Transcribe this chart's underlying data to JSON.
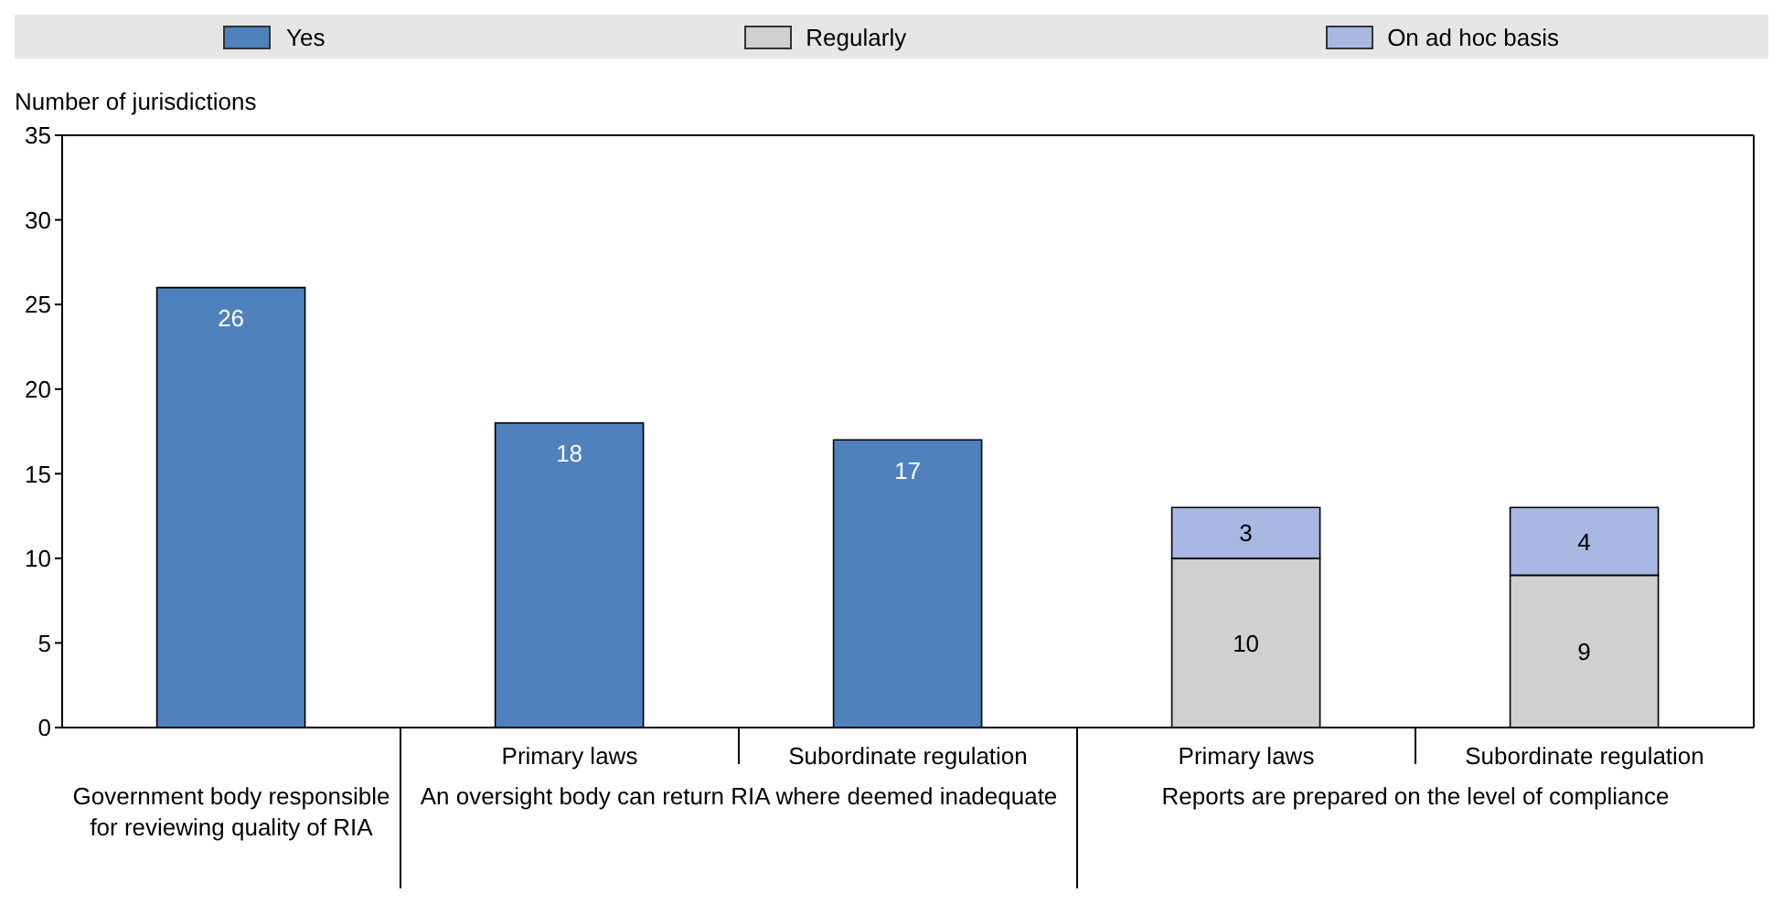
{
  "chart_data": {
    "type": "bar",
    "stacked": true,
    "ylabel": "Number of jurisdictions",
    "categories": [
      null,
      "Primary laws",
      "Subordinate regulation",
      "Primary laws",
      "Subordinate regulation"
    ],
    "annotations": [
      "Government body responsible for reviewing quality of RIA",
      "An oversight body can return RIA where deemed inadequate",
      "Reports are prepared on the level of compliance"
    ],
    "series": [
      {
        "name": "Yes",
        "color": "#4f81bd",
        "values": [
          26,
          18,
          17,
          null,
          null
        ]
      },
      {
        "name": "Regularly",
        "color": "#d0d0d0",
        "values": [
          null,
          null,
          null,
          10,
          9
        ]
      },
      {
        "name": "On ad hoc basis",
        "color": "#a9b8e3",
        "values": [
          null,
          null,
          null,
          3,
          4
        ]
      }
    ],
    "ylim": [
      0,
      35
    ],
    "yticks": [
      0,
      5,
      10,
      15,
      20,
      25,
      30,
      35
    ],
    "data_labels": true,
    "legend": "top",
    "grid": false
  }
}
